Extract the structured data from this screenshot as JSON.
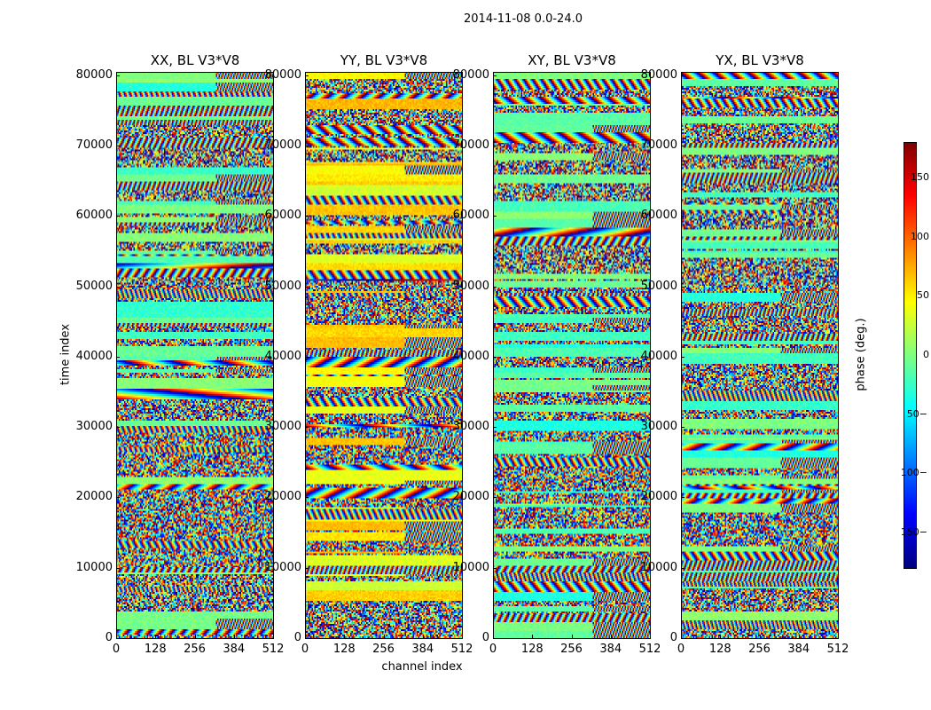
{
  "chart_data": {
    "type": "heatmap",
    "suptitle": "2014-11-08 0.0-24.0",
    "panels": [
      {
        "title": "XX, BL V3*V8",
        "pol": "XX"
      },
      {
        "title": "YY, BL V3*V8",
        "pol": "YY"
      },
      {
        "title": "XY, BL V3*V8",
        "pol": "XY"
      },
      {
        "title": "YX, BL V3*V8",
        "pol": "YX"
      }
    ],
    "xlabel": "channel index",
    "ylabel": "time index",
    "xlim": [
      0,
      512
    ],
    "ylim": [
      0,
      80500
    ],
    "xticks": [
      "0",
      "128",
      "256",
      "384",
      "512"
    ],
    "xtick_values": [
      0,
      128,
      256,
      384,
      512
    ],
    "yticks": [
      "0",
      "10000",
      "20000",
      "30000",
      "40000",
      "50000",
      "60000",
      "70000",
      "80000"
    ],
    "ytick_values": [
      0,
      10000,
      20000,
      30000,
      40000,
      50000,
      60000,
      70000,
      80000
    ],
    "colorbar": {
      "label": "phase (deg.)",
      "range": [
        -180,
        180
      ],
      "ticks": [
        "150",
        "100",
        "50",
        "0",
        "−50",
        "−100",
        "−150"
      ],
      "tick_values": [
        150,
        100,
        50,
        0,
        -50,
        -100,
        -150
      ],
      "colormap": "jet"
    }
  }
}
